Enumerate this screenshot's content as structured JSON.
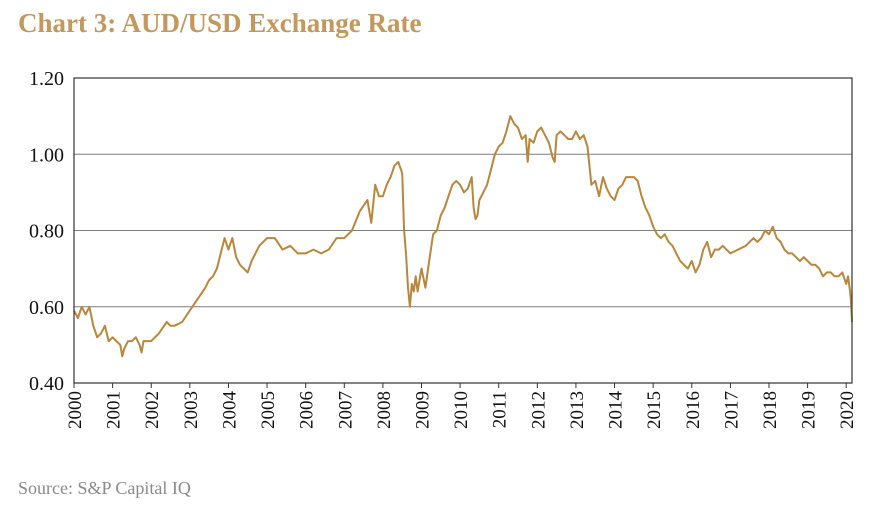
{
  "title": "Chart 3: AUD/USD Exchange Rate",
  "source": "Source: S&P Capital IQ",
  "colors": {
    "line": "#B8873B",
    "title": "#C4975A",
    "grid": "#7f7f7f",
    "axis": "#333333"
  },
  "chart_data": {
    "type": "line",
    "title": "Chart 3: AUD/USD Exchange Rate",
    "xlabel": "",
    "ylabel": "",
    "xlim": [
      2000,
      2020.15
    ],
    "ylim": [
      0.4,
      1.2
    ],
    "grid": "horizontal",
    "legend": "none",
    "y_ticks": [
      "0.40",
      "0.60",
      "0.80",
      "1.00",
      "1.20"
    ],
    "x_ticks": [
      "2000",
      "2001",
      "2002",
      "2003",
      "2004",
      "2005",
      "2006",
      "2007",
      "2008",
      "2009",
      "2010",
      "2011",
      "2012",
      "2013",
      "2014",
      "2015",
      "2016",
      "2017",
      "2018",
      "2019",
      "2020"
    ],
    "series": [
      {
        "x": [
          2000.0,
          2000.1,
          2000.2,
          2000.3,
          2000.4,
          2000.5,
          2000.6,
          2000.7,
          2000.8,
          2000.9,
          2001.0,
          2001.1,
          2001.2,
          2001.25,
          2001.3,
          2001.4,
          2001.5,
          2001.6,
          2001.7,
          2001.75,
          2001.8,
          2001.9,
          2002.0,
          2002.2,
          2002.4,
          2002.5,
          2002.6,
          2002.8,
          2003.0,
          2003.2,
          2003.4,
          2003.5,
          2003.6,
          2003.7,
          2003.8,
          2003.9,
          2004.0,
          2004.1,
          2004.2,
          2004.3,
          2004.4,
          2004.5,
          2004.6,
          2004.8,
          2005.0,
          2005.2,
          2005.4,
          2005.6,
          2005.8,
          2006.0,
          2006.2,
          2006.4,
          2006.6,
          2006.8,
          2007.0,
          2007.2,
          2007.4,
          2007.6,
          2007.7,
          2007.8,
          2007.9,
          2008.0,
          2008.1,
          2008.2,
          2008.3,
          2008.4,
          2008.5,
          2008.55,
          2008.6,
          2008.65,
          2008.7,
          2008.75,
          2008.8,
          2008.85,
          2008.9,
          2009.0,
          2009.1,
          2009.2,
          2009.3,
          2009.4,
          2009.5,
          2009.6,
          2009.7,
          2009.8,
          2009.9,
          2010.0,
          2010.1,
          2010.2,
          2010.3,
          2010.35,
          2010.4,
          2010.45,
          2010.5,
          2010.6,
          2010.7,
          2010.8,
          2010.9,
          2011.0,
          2011.1,
          2011.2,
          2011.3,
          2011.4,
          2011.5,
          2011.6,
          2011.7,
          2011.75,
          2011.8,
          2011.9,
          2012.0,
          2012.1,
          2012.2,
          2012.3,
          2012.4,
          2012.45,
          2012.5,
          2012.6,
          2012.7,
          2012.8,
          2012.9,
          2013.0,
          2013.1,
          2013.2,
          2013.3,
          2013.4,
          2013.5,
          2013.6,
          2013.7,
          2013.8,
          2013.9,
          2014.0,
          2014.1,
          2014.2,
          2014.3,
          2014.4,
          2014.5,
          2014.6,
          2014.7,
          2014.8,
          2014.9,
          2015.0,
          2015.1,
          2015.2,
          2015.3,
          2015.4,
          2015.5,
          2015.6,
          2015.7,
          2015.8,
          2015.9,
          2016.0,
          2016.1,
          2016.2,
          2016.3,
          2016.4,
          2016.5,
          2016.6,
          2016.7,
          2016.8,
          2016.9,
          2017.0,
          2017.2,
          2017.4,
          2017.6,
          2017.7,
          2017.8,
          2017.9,
          2018.0,
          2018.1,
          2018.2,
          2018.3,
          2018.4,
          2018.5,
          2018.6,
          2018.7,
          2018.8,
          2018.9,
          2019.0,
          2019.1,
          2019.2,
          2019.3,
          2019.4,
          2019.5,
          2019.6,
          2019.7,
          2019.8,
          2019.9,
          2020.0,
          2020.05,
          2020.1,
          2020.12,
          2020.15
        ],
        "values": [
          0.59,
          0.57,
          0.6,
          0.58,
          0.6,
          0.55,
          0.52,
          0.53,
          0.55,
          0.51,
          0.52,
          0.51,
          0.5,
          0.47,
          0.49,
          0.51,
          0.51,
          0.52,
          0.5,
          0.48,
          0.51,
          0.51,
          0.51,
          0.53,
          0.56,
          0.55,
          0.55,
          0.56,
          0.59,
          0.62,
          0.65,
          0.67,
          0.68,
          0.7,
          0.74,
          0.78,
          0.75,
          0.78,
          0.73,
          0.71,
          0.7,
          0.69,
          0.72,
          0.76,
          0.78,
          0.78,
          0.75,
          0.76,
          0.74,
          0.74,
          0.75,
          0.74,
          0.75,
          0.78,
          0.78,
          0.8,
          0.85,
          0.88,
          0.82,
          0.92,
          0.89,
          0.89,
          0.92,
          0.94,
          0.97,
          0.98,
          0.95,
          0.8,
          0.74,
          0.65,
          0.6,
          0.66,
          0.64,
          0.68,
          0.64,
          0.7,
          0.65,
          0.72,
          0.79,
          0.8,
          0.84,
          0.86,
          0.89,
          0.92,
          0.93,
          0.92,
          0.9,
          0.91,
          0.94,
          0.86,
          0.83,
          0.84,
          0.88,
          0.9,
          0.92,
          0.96,
          1.0,
          1.02,
          1.03,
          1.06,
          1.1,
          1.08,
          1.07,
          1.04,
          1.05,
          0.98,
          1.04,
          1.03,
          1.06,
          1.07,
          1.05,
          1.03,
          0.99,
          0.98,
          1.05,
          1.06,
          1.05,
          1.04,
          1.04,
          1.06,
          1.04,
          1.05,
          1.02,
          0.92,
          0.93,
          0.89,
          0.94,
          0.91,
          0.89,
          0.88,
          0.91,
          0.92,
          0.94,
          0.94,
          0.94,
          0.93,
          0.89,
          0.86,
          0.84,
          0.81,
          0.79,
          0.78,
          0.79,
          0.77,
          0.76,
          0.74,
          0.72,
          0.71,
          0.7,
          0.72,
          0.69,
          0.71,
          0.75,
          0.77,
          0.73,
          0.75,
          0.75,
          0.76,
          0.75,
          0.74,
          0.75,
          0.76,
          0.78,
          0.77,
          0.78,
          0.8,
          0.79,
          0.81,
          0.78,
          0.77,
          0.75,
          0.74,
          0.74,
          0.73,
          0.72,
          0.73,
          0.72,
          0.71,
          0.71,
          0.7,
          0.68,
          0.69,
          0.69,
          0.68,
          0.68,
          0.69,
          0.66,
          0.68,
          0.64,
          0.62,
          0.56
        ]
      }
    ]
  }
}
